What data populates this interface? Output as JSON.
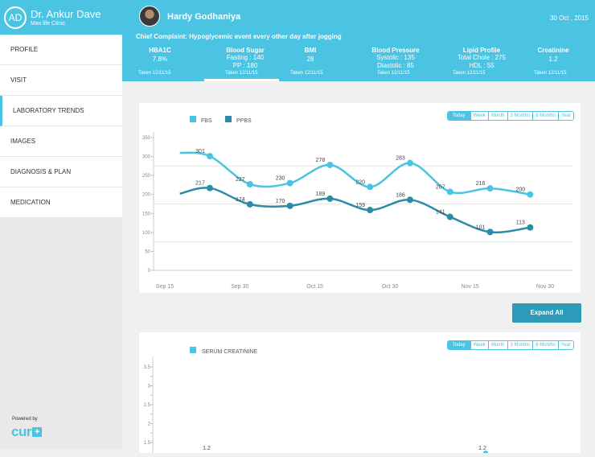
{
  "doctor": {
    "initials": "AD",
    "name": "Dr. Ankur Dave",
    "clinic": "Max life Clinic"
  },
  "sidebar": {
    "items": [
      {
        "label": "PROFILE"
      },
      {
        "label": "VISIT"
      },
      {
        "label": "LABORATORY TRENDS"
      },
      {
        "label": "IMAGES"
      },
      {
        "label": "DIAGNOSIS & PLAN"
      },
      {
        "label": "MEDICATION"
      }
    ],
    "powered_by": "Powered by",
    "logo": "cur",
    "logo_plus": "+"
  },
  "patient": {
    "name": "Hardy Godhaniya",
    "date": "30 Oct , 2015"
  },
  "complaint": {
    "label": "Chief Complaint:",
    "text": "Hypoglycemic event every other day after jogging"
  },
  "metrics": [
    {
      "title": "HBA1C",
      "line1": "7.8%",
      "line2": "",
      "taken": "Taken 12/11/15"
    },
    {
      "title": "Blood Sugar",
      "line1": "Fasting : 140",
      "line2": "PP : 180",
      "taken": "Taken 12/11/15"
    },
    {
      "title": "BMI",
      "line1": "28",
      "line2": "",
      "taken": "Taken 12/11/15"
    },
    {
      "title": "Blood Pressure",
      "line1": "Systolic : 135",
      "line2": "Diastolic : 85",
      "taken": "Taken 12/11/15"
    },
    {
      "title": "Lipid Profile",
      "line1": "Total Chole : 275",
      "line2": "HDL : 55",
      "taken": "Taken 12/11/15"
    },
    {
      "title": "Creatinine",
      "line1": "1.2",
      "line2": "",
      "taken": "Taken 12/11/15"
    }
  ],
  "range_tabs": [
    "Today",
    "Week",
    "Month",
    "3 Months",
    "6 Months",
    "Year"
  ],
  "expand_label": "Expand All",
  "colors": {
    "accent": "#4bc3e3",
    "fbs": "#4bc3e3",
    "ppbs": "#2a8ca6",
    "button": "#2c9ab8"
  },
  "chart_data": [
    {
      "type": "line",
      "x_labels": [
        "Sep 15",
        "Sep 30",
        "Oct 15",
        "Oct 30",
        "Nov 15",
        "Nov 30"
      ],
      "y_ticks": [
        0,
        50,
        100,
        150,
        200,
        250,
        300,
        350
      ],
      "ylim": [
        0,
        350
      ],
      "x": [
        "Sep 18",
        "Sep 24",
        "Oct 2",
        "Oct 10",
        "Oct 18",
        "Oct 26",
        "Nov 3",
        "Nov 11",
        "Nov 19",
        "Nov 27"
      ],
      "series": [
        {
          "name": "FBS",
          "values": [
            301,
            227,
            230,
            278,
            220,
            283,
            207,
            216,
            200
          ],
          "x": [
            "Sep 24",
            "Oct 2",
            "Oct 10",
            "Oct 18",
            "Oct 26",
            "Nov 3",
            "Nov 11",
            "Nov 19",
            "Nov 27"
          ]
        },
        {
          "name": "PPBS",
          "values": [
            217,
            174,
            170,
            189,
            159,
            186,
            141,
            101,
            113
          ],
          "x": [
            "Sep 24",
            "Oct 2",
            "Oct 10",
            "Oct 18",
            "Oct 26",
            "Nov 3",
            "Nov 11",
            "Nov 19",
            "Nov 27"
          ]
        }
      ],
      "grid": true
    },
    {
      "type": "line",
      "y_ticks": [
        1.5,
        2,
        2.5,
        3,
        3.5
      ],
      "series": [
        {
          "name": "SERUM CREATININE",
          "values": [
            1.2,
            1.2
          ]
        }
      ],
      "data_labels": [
        "1.2",
        "1.2"
      ]
    }
  ]
}
